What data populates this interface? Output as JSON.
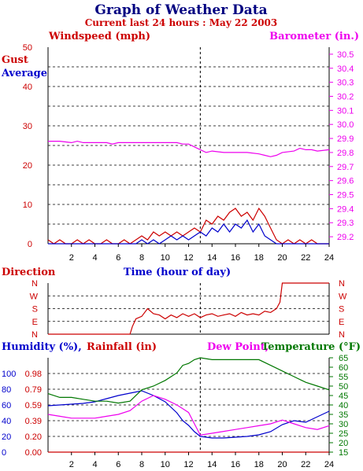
{
  "header": {
    "title": "Graph of Weather Data",
    "subtitle": "Current last 24 hours : May 22 2003"
  },
  "colors": {
    "red": "#cc0000",
    "blue": "#0000cc",
    "magenta": "#ee00ee",
    "green": "#007700",
    "black": "#000000",
    "title": "#000080"
  },
  "chart_data": [
    {
      "type": "line",
      "name": "wind-barometer",
      "label_windspeed": "Windspeed (mph)",
      "label_barometer": "Barometer (in.)",
      "label_gust": "Gust",
      "label_average": "Average",
      "xlim": [
        0,
        24
      ],
      "xticks": [
        "2",
        "4",
        "6",
        "8",
        "10",
        "12",
        "14",
        "16",
        "18",
        "20",
        "22",
        "24"
      ],
      "ylim_left": [
        0,
        50
      ],
      "yticks_left": [
        "0",
        "10",
        "20",
        "30",
        "40",
        "50"
      ],
      "ylim_right": [
        29.15,
        30.55
      ],
      "yticks_right": [
        "29.2",
        "29.3",
        "29.4",
        "29.5",
        "29.6",
        "29.7",
        "29.8",
        "29.9",
        "30.0",
        "30.1",
        "30.2",
        "30.3",
        "30.4",
        "30.5"
      ],
      "series": [
        {
          "name": "Gust",
          "color": "#cc0000",
          "x": [
            0,
            0.5,
            1,
            1.5,
            2,
            2.5,
            3,
            3.5,
            4,
            4.5,
            5,
            5.5,
            6,
            6.5,
            7,
            7.5,
            8,
            8.5,
            9,
            9.5,
            10,
            10.5,
            11,
            11.5,
            12,
            12.5,
            13,
            13.5,
            14,
            14.5,
            15,
            15.5,
            16,
            16.5,
            17,
            17.5,
            18,
            18.5,
            19,
            19.5,
            20,
            20.5,
            21,
            21.5,
            22,
            22.5,
            23,
            23.5,
            24
          ],
          "y": [
            1,
            0,
            1,
            0,
            0,
            1,
            0,
            1,
            0,
            0,
            1,
            0,
            0,
            1,
            0,
            1,
            2,
            1,
            3,
            2,
            3,
            2,
            3,
            2,
            3,
            4,
            3,
            6,
            5,
            7,
            6,
            8,
            9,
            7,
            8,
            6,
            9,
            7,
            4,
            1,
            0,
            1,
            0,
            1,
            0,
            1,
            0,
            0,
            0
          ]
        },
        {
          "name": "Average",
          "color": "#0000cc",
          "x": [
            0,
            1,
            2,
            3,
            4,
            5,
            6,
            7,
            7.5,
            8,
            8.5,
            9,
            9.5,
            10,
            10.5,
            11,
            11.5,
            12,
            12.5,
            13,
            13.5,
            14,
            14.5,
            15,
            15.5,
            16,
            16.5,
            17,
            17.5,
            18,
            18.5,
            19,
            19.5,
            20,
            21,
            22,
            23,
            24
          ],
          "y": [
            0,
            0,
            0,
            0,
            0,
            0,
            0,
            0,
            0,
            1,
            0,
            1,
            0,
            1,
            2,
            1,
            2,
            1,
            2,
            3,
            2,
            4,
            3,
            5,
            3,
            5,
            4,
            6,
            3,
            5,
            2,
            1,
            0,
            0,
            0,
            0,
            0,
            0
          ]
        },
        {
          "name": "Barometer",
          "color": "#ee00ee",
          "axis": "right",
          "x": [
            0,
            1,
            2,
            2.5,
            3,
            4,
            5,
            5.5,
            6,
            7,
            8,
            9,
            10,
            11,
            11.5,
            12,
            12.5,
            13,
            13.5,
            14,
            15,
            16,
            17,
            18,
            18.5,
            19,
            19.5,
            20,
            21,
            21.5,
            22,
            22.5,
            23,
            24
          ],
          "y": [
            29.88,
            29.88,
            29.87,
            29.88,
            29.87,
            29.87,
            29.87,
            29.86,
            29.87,
            29.87,
            29.87,
            29.87,
            29.87,
            29.87,
            29.86,
            29.86,
            29.84,
            29.82,
            29.8,
            29.81,
            29.8,
            29.8,
            29.8,
            29.79,
            29.78,
            29.77,
            29.78,
            29.8,
            29.81,
            29.83,
            29.82,
            29.82,
            29.81,
            29.82
          ]
        }
      ]
    },
    {
      "type": "line",
      "name": "direction",
      "label_direction": "Direction",
      "label_time": "Time (hour of day)",
      "xlim": [
        0,
        24
      ],
      "ylim": [
        0,
        4
      ],
      "yticks": [
        "N",
        "E",
        "S",
        "W",
        "N"
      ],
      "series": [
        {
          "name": "Direction",
          "color": "#cc0000",
          "x": [
            0,
            7,
            7.2,
            7.5,
            8,
            8.5,
            9,
            9.5,
            10,
            10.5,
            11,
            11.5,
            12,
            12.5,
            13,
            13.5,
            14,
            14.5,
            15,
            15.5,
            16,
            16.5,
            17,
            17.5,
            18,
            18.5,
            19,
            19.5,
            19.8,
            20,
            21,
            22,
            23,
            24
          ],
          "y": [
            0,
            0,
            0.6,
            1.2,
            1.4,
            2.0,
            1.6,
            1.5,
            1.2,
            1.5,
            1.3,
            1.6,
            1.4,
            1.6,
            1.3,
            1.5,
            1.6,
            1.4,
            1.5,
            1.6,
            1.4,
            1.7,
            1.5,
            1.6,
            1.5,
            1.8,
            1.7,
            2.0,
            2.5,
            4,
            4,
            4,
            4,
            4
          ]
        }
      ]
    },
    {
      "type": "line",
      "name": "humidity-rain-temp",
      "label_humidity": "Humidity (%),",
      "label_rainfall": "Rainfall (in)",
      "label_dewpoint": "Dew Point,",
      "label_temperature": "Temperature (°F)",
      "xlim": [
        0,
        24
      ],
      "xticks": [
        "2",
        "4",
        "6",
        "8",
        "10",
        "12",
        "14",
        "16",
        "18",
        "20",
        "22",
        "24"
      ],
      "ylim_humidity": [
        0,
        120
      ],
      "yticks_humidity": [
        "0",
        "20",
        "40",
        "60",
        "80",
        "100"
      ],
      "yticks_rain": [
        "0.00",
        "0.20",
        "0.39",
        "0.59",
        "0.79",
        "0.98"
      ],
      "ylim_temp": [
        15,
        65
      ],
      "yticks_temp": [
        "15",
        "20",
        "25",
        "30",
        "35",
        "40",
        "45",
        "50",
        "55",
        "60",
        "65"
      ],
      "series": [
        {
          "name": "Humidity",
          "color": "#0000cc",
          "axis": "humidity",
          "x": [
            0,
            1,
            2,
            3,
            4,
            5,
            6,
            7,
            8,
            9,
            10,
            11,
            11.5,
            12,
            12.5,
            13,
            14,
            15,
            16,
            17,
            18,
            19,
            20,
            21,
            22,
            23,
            24
          ],
          "y": [
            59,
            60,
            61,
            62,
            64,
            68,
            72,
            75,
            78,
            72,
            64,
            50,
            40,
            34,
            26,
            20,
            18,
            18,
            19,
            20,
            22,
            26,
            35,
            40,
            38,
            45,
            52
          ]
        },
        {
          "name": "Temperature",
          "color": "#007700",
          "axis": "temp",
          "x": [
            0,
            1,
            2,
            3,
            4,
            5,
            6,
            7,
            8,
            9,
            10,
            11,
            11.5,
            12,
            12.5,
            13,
            14,
            15,
            16,
            17,
            18,
            19,
            20,
            21,
            22,
            23,
            24
          ],
          "y": [
            46,
            44,
            44,
            43,
            42,
            42,
            41,
            42,
            48,
            50,
            53,
            57,
            61,
            62,
            64,
            65,
            64,
            64,
            64,
            64,
            64,
            61,
            58,
            55,
            52,
            50,
            48
          ]
        },
        {
          "name": "Dew Point",
          "color": "#ee00ee",
          "axis": "temp",
          "x": [
            0,
            1,
            2,
            3,
            4,
            5,
            6,
            7,
            8,
            9,
            10,
            11,
            11.5,
            12,
            12.5,
            13,
            14,
            15,
            16,
            17,
            18,
            19,
            20,
            21,
            22,
            23,
            24
          ],
          "y": [
            35,
            34,
            33,
            33,
            33,
            34,
            35,
            37,
            42,
            45,
            43,
            40,
            38,
            36,
            30,
            24,
            25,
            26,
            27,
            28,
            29,
            30,
            32,
            30,
            28,
            27,
            29
          ]
        },
        {
          "name": "Rainfall",
          "color": "#cc0000",
          "axis": "humidity",
          "x": [
            0,
            24
          ],
          "y": [
            0,
            0
          ]
        }
      ]
    }
  ]
}
